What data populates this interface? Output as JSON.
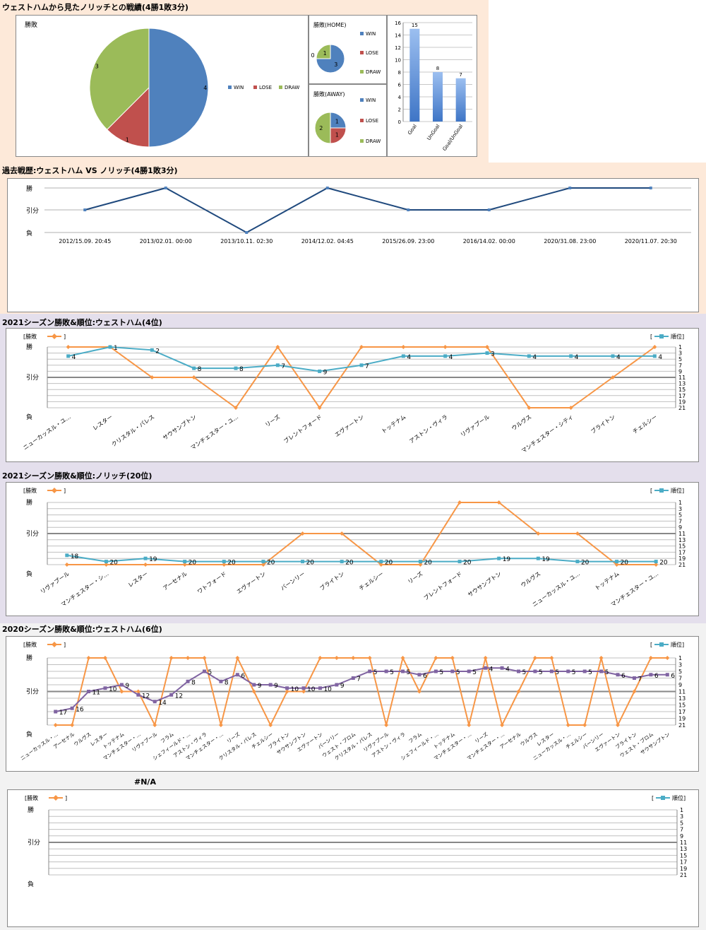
{
  "colors": {
    "band1": "#fde9d9",
    "band2": "#e4dfec",
    "band3": "#f2f2f2",
    "win": "#4f81bd",
    "lose": "#c0504d",
    "draw": "#9bbb59",
    "result_line": "#f79646",
    "rank_line": "#4bacc6",
    "rank_line_2020": "#8064a2",
    "h2h_line": "#1f497d"
  },
  "icons": {
    "legend_marker": "diamond-marker",
    "rank_marker": "square-marker"
  },
  "section1": {
    "title": "ウェストハムから見たノリッチとの戦績(4勝1敗3分)"
  },
  "section2": {
    "title": "過去戦歴:ウェストハム VS ノリッチ(4勝1敗3分)"
  },
  "section3": {
    "title": "2021シーズン勝敗&順位:ウェストハム(4位)"
  },
  "section4": {
    "title": "2021シーズン勝敗&順位:ノリッチ(20位)"
  },
  "section5": {
    "title": "2020シーズン勝敗&順位:ウェストハム(6位)"
  },
  "section6": {
    "title": "#N/A"
  },
  "labels": {
    "result_legend": "[勝敗",
    "bracket_close": "]",
    "rank_legend_open": "[",
    "rank_legend": "順位]"
  },
  "chart_data": [
    {
      "id": "pie_total",
      "type": "pie",
      "title": "勝敗",
      "categories": [
        "WIN",
        "LOSE",
        "DRAW"
      ],
      "values": [
        4,
        1,
        3
      ],
      "legend": "right"
    },
    {
      "id": "pie_home",
      "type": "pie",
      "title": "勝敗(HOME)",
      "categories": [
        "WIN",
        "LOSE",
        "DRAW"
      ],
      "values": [
        3,
        0,
        1
      ],
      "legend": "right"
    },
    {
      "id": "pie_away",
      "type": "pie",
      "title": "勝敗(AWAY)",
      "categories": [
        "WIN",
        "LOSE",
        "DRAW"
      ],
      "values": [
        1,
        1,
        2
      ],
      "legend": "right"
    },
    {
      "id": "goals",
      "type": "bar",
      "categories": [
        "Goal",
        "UnGoal",
        "Goal/UnGoal"
      ],
      "values": [
        15,
        8,
        7
      ],
      "ylim": [
        0,
        16
      ],
      "yticks": [
        0,
        2,
        4,
        6,
        8,
        10,
        12,
        14,
        16
      ],
      "grid": true
    },
    {
      "id": "h2h",
      "type": "line",
      "categories": [
        "2012/15.09. 20:45",
        "2013/02.01. 00:00",
        "2013/10.11. 02:30",
        "2014/12.02. 04:45",
        "2015/26.09. 23:00",
        "2016/14.02. 00:00",
        "2020/31.08. 23:00",
        "2020/11.07. 20:30"
      ],
      "y_categories": [
        "勝",
        "引分",
        "負"
      ],
      "values": [
        "引分",
        "勝",
        "負",
        "勝",
        "引分",
        "引分",
        "勝",
        "勝"
      ],
      "grid": true
    },
    {
      "id": "wh2021",
      "type": "line",
      "categories": [
        "ニューカッスル・ユ…",
        "レスター",
        "クリスタル・パレス",
        "サウサンプトン",
        "マンチェスター・ユ…",
        "リーズ",
        "ブレントフォード",
        "エヴァートン",
        "トッテナム",
        "アストン・ヴィラ",
        "リヴァプール",
        "ウルヴス",
        "マンチェスター・シティ",
        "ブライトン",
        "チェルシー"
      ],
      "series": [
        {
          "name": "勝敗",
          "values": [
            "勝",
            "勝",
            "引分",
            "引分",
            "負",
            "勝",
            "負",
            "勝",
            "勝",
            "勝",
            "勝",
            "負",
            "負",
            "引分",
            "勝"
          ]
        },
        {
          "name": "順位",
          "values": [
            4,
            1,
            2,
            8,
            8,
            7,
            9,
            7,
            4,
            4,
            3,
            4,
            4,
            4,
            4
          ]
        }
      ],
      "y_categories": [
        "勝",
        "引分",
        "負"
      ],
      "rank_ticks": [
        1,
        3,
        5,
        7,
        9,
        11,
        13,
        15,
        17,
        19,
        21
      ],
      "legend": "top"
    },
    {
      "id": "nor2021",
      "type": "line",
      "categories": [
        "リヴァプール",
        "マンチェスター・シ…",
        "レスター",
        "アーセナル",
        "ワトフォード",
        "エヴァートン",
        "バーンリー",
        "ブライトン",
        "チェルシー",
        "リーズ",
        "ブレントフォード",
        "サウサンプトン",
        "ウルヴス",
        "ニューカッスル・ユ…",
        "トッテナム",
        "マンチェスター・ユ…"
      ],
      "series": [
        {
          "name": "勝敗",
          "values": [
            "負",
            "負",
            "負",
            "負",
            "負",
            "負",
            "引分",
            "引分",
            "負",
            "負",
            "勝",
            "勝",
            "引分",
            "引分",
            "負",
            "負"
          ]
        },
        {
          "name": "順位",
          "values": [
            18,
            20,
            19,
            20,
            20,
            20,
            20,
            20,
            20,
            20,
            20,
            19,
            19,
            20,
            20,
            20
          ]
        }
      ],
      "y_categories": [
        "勝",
        "引分",
        "負"
      ],
      "rank_ticks": [
        1,
        3,
        5,
        7,
        9,
        11,
        13,
        15,
        17,
        19,
        21
      ],
      "legend": "top"
    },
    {
      "id": "wh2020",
      "type": "line",
      "categories": [
        "ニューカッスル・…",
        "アーセナル",
        "ウルヴス",
        "レスター",
        "トッテナム",
        "マンチェスター・…",
        "リヴァプール",
        "フラム",
        "シェフィールド・…",
        "アストン・ヴィラ",
        "マンチェスター・…",
        "リーズ",
        "クリスタル・パレス",
        "チェルシー",
        "ブライトン",
        "サウサンプトン",
        "エヴァートン",
        "バーンリー",
        "ウェスト・ブロム",
        "クリスタル・パレス",
        "リヴァプール",
        "アストン・ヴィラ",
        "フラム",
        "シェフィールド・…",
        "トッテナム",
        "マンチェスター・…",
        "リーズ",
        "マンチェスター・…",
        "アーセナル",
        "ウルヴス",
        "レスター",
        "ニューカッスル・…",
        "チェルシー",
        "バーンリー",
        "エヴァートン",
        "ブライトン",
        "ウェスト・ブロム",
        "サウサンプトン"
      ],
      "series": [
        {
          "name": "勝敗",
          "values": [
            "負",
            "負",
            "勝",
            "勝",
            "引分",
            "引分",
            "負",
            "勝",
            "勝",
            "勝",
            "負",
            "勝",
            "引分",
            "負",
            "引分",
            "引分",
            "勝",
            "勝",
            "勝",
            "勝",
            "負",
            "勝",
            "引分",
            "勝",
            "勝",
            "負",
            "勝",
            "負",
            "引分",
            "勝",
            "勝",
            "負",
            "負",
            "勝",
            "負",
            "引分",
            "勝",
            "勝"
          ]
        },
        {
          "name": "順位",
          "values": [
            17,
            16,
            11,
            10,
            9,
            12,
            14,
            12,
            8,
            5,
            8,
            6,
            9,
            9,
            10,
            10,
            10,
            9,
            7,
            5,
            5,
            5,
            6,
            5,
            5,
            5,
            4,
            4,
            5,
            5,
            5,
            5,
            5,
            5,
            6,
            7,
            6,
            6
          ]
        }
      ],
      "y_categories": [
        "勝",
        "引分",
        "負"
      ],
      "rank_ticks": [
        1,
        3,
        5,
        7,
        9,
        11,
        13,
        15,
        17,
        19,
        21
      ],
      "legend": "top"
    },
    {
      "id": "na_chart",
      "type": "line",
      "categories": [],
      "series": [],
      "y_categories": [
        "勝",
        "引分",
        "負"
      ],
      "rank_ticks": [
        1,
        3,
        5,
        7,
        9,
        11,
        13,
        15,
        17,
        19,
        21
      ],
      "legend": "top"
    }
  ]
}
